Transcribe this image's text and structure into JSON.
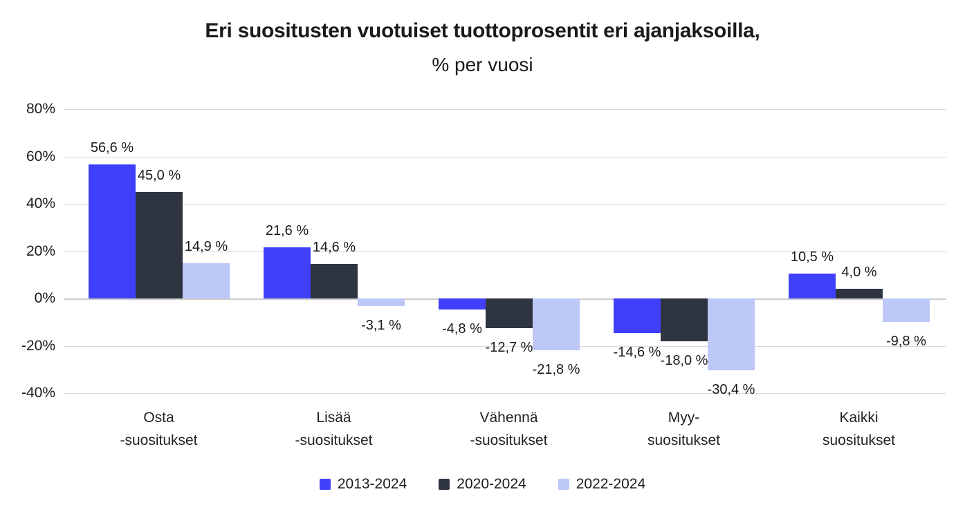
{
  "title": "Eri suositusten vuotuiset tuottoprosentit eri ajanjaksoilla,",
  "subtitle": "% per vuosi",
  "colors": {
    "series_2013_2024": "#4040FA",
    "series_2020_2024": "#2E3440",
    "series_2022_2024": "#BDC7F8",
    "gridline": "#DADADA",
    "text": "#1A1A1A",
    "background": "#FFFFFF"
  },
  "chart_data": {
    "type": "bar",
    "title": "Eri suositusten vuotuiset tuottoprosentit eri ajanjaksoilla,",
    "subtitle": "% per vuosi",
    "categories": [
      {
        "lines": [
          "Osta",
          "-suositukset"
        ]
      },
      {
        "lines": [
          "Lisää",
          "-suositukset"
        ]
      },
      {
        "lines": [
          "Vähennä",
          "-suositukset"
        ]
      },
      {
        "lines": [
          "Myy-",
          "suositukset"
        ]
      },
      {
        "lines": [
          "Kaikki",
          "suositukset"
        ]
      }
    ],
    "series": [
      {
        "name": "2013-2024",
        "color": "#4040FA",
        "values": [
          56.6,
          21.6,
          -4.8,
          -14.6,
          10.5
        ],
        "labels": [
          "56,6 %",
          "21,6 %",
          "-4,8 %",
          "-14,6 %",
          "10,5 %"
        ]
      },
      {
        "name": "2020-2024",
        "color": "#2E3440",
        "values": [
          45.0,
          14.6,
          -12.7,
          -18.0,
          4.0
        ],
        "labels": [
          "45,0 %",
          "14,6 %",
          "-12,7 %",
          "-18,0 %",
          "4,0 %"
        ]
      },
      {
        "name": "2022-2024",
        "color": "#BDC7F8",
        "values": [
          14.9,
          -3.1,
          -21.8,
          -30.4,
          -9.8
        ],
        "labels": [
          "14,9 %",
          "-3,1 %",
          "-21,8 %",
          "-30,4 %",
          "-9,8 %"
        ]
      }
    ],
    "y_axis": {
      "min": -40,
      "max": 80,
      "tick_step": 20,
      "ticks": [
        {
          "value": 80,
          "label": "80%"
        },
        {
          "value": 60,
          "label": "60%"
        },
        {
          "value": 40,
          "label": "40%"
        },
        {
          "value": 20,
          "label": "20%"
        },
        {
          "value": 0,
          "label": "0%"
        },
        {
          "value": -20,
          "label": "-20%"
        },
        {
          "value": -40,
          "label": "-40%"
        }
      ]
    },
    "grid": true,
    "legend_position": "bottom"
  }
}
